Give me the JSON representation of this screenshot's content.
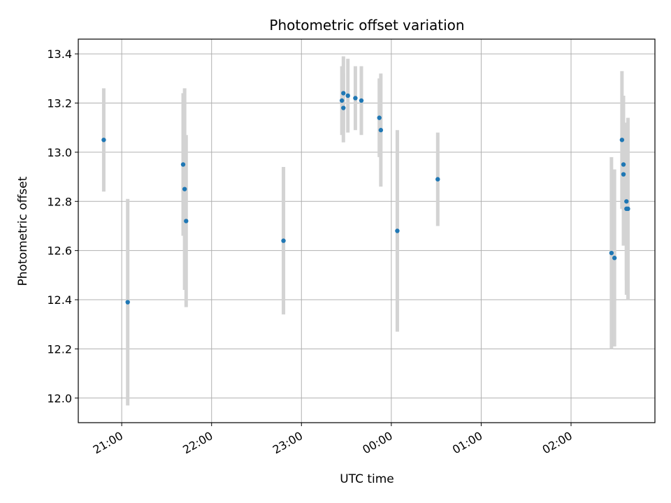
{
  "chart_data": {
    "type": "scatter",
    "title": "Photometric offset variation",
    "xlabel": "UTC time",
    "ylabel": "Photometric offset",
    "xlim": [
      "20:31",
      "02:56"
    ],
    "ylim": [
      11.9,
      13.46
    ],
    "grid": true,
    "x_ticks": [
      "21:00",
      "22:00",
      "23:00",
      "00:00",
      "01:00",
      "02:00"
    ],
    "y_ticks": [
      "12.0",
      "12.2",
      "12.4",
      "12.6",
      "12.8",
      "13.0",
      "13.2",
      "13.4"
    ],
    "colors": {
      "point": "#1f77b4",
      "errorbar": "#d3d3d3",
      "grid": "#b0b0b0"
    },
    "points": [
      {
        "x": "20:48",
        "y": 13.05,
        "err": 0.21
      },
      {
        "x": "21:04",
        "y": 12.39,
        "err": 0.42
      },
      {
        "x": "21:41",
        "y": 12.95,
        "err": 0.29
      },
      {
        "x": "21:42",
        "y": 12.85,
        "err": 0.41
      },
      {
        "x": "21:43",
        "y": 12.72,
        "err": 0.35
      },
      {
        "x": "22:48",
        "y": 12.64,
        "err": 0.3
      },
      {
        "x": "23:27",
        "y": 13.21,
        "err": 0.14
      },
      {
        "x": "23:28",
        "y": 13.18,
        "err": 0.14
      },
      {
        "x": "23:28",
        "y": 13.24,
        "err": 0.15
      },
      {
        "x": "23:31",
        "y": 13.23,
        "err": 0.15
      },
      {
        "x": "23:36",
        "y": 13.22,
        "err": 0.13
      },
      {
        "x": "23:40",
        "y": 13.21,
        "err": 0.14
      },
      {
        "x": "23:52",
        "y": 13.14,
        "err": 0.16
      },
      {
        "x": "23:53",
        "y": 13.09,
        "err": 0.23
      },
      {
        "x": "00:04",
        "y": 12.68,
        "err": 0.41
      },
      {
        "x": "00:31",
        "y": 12.89,
        "err": 0.19
      },
      {
        "x": "02:27",
        "y": 12.59,
        "err": 0.39
      },
      {
        "x": "02:29",
        "y": 12.57,
        "err": 0.36
      },
      {
        "x": "02:34",
        "y": 13.05,
        "err": 0.28
      },
      {
        "x": "02:35",
        "y": 12.95,
        "err": 0.28
      },
      {
        "x": "02:35",
        "y": 12.91,
        "err": 0.29
      },
      {
        "x": "02:37",
        "y": 12.8,
        "err": 0.32
      },
      {
        "x": "02:37",
        "y": 12.77,
        "err": 0.35
      },
      {
        "x": "02:38",
        "y": 12.77,
        "err": 0.37
      }
    ]
  }
}
